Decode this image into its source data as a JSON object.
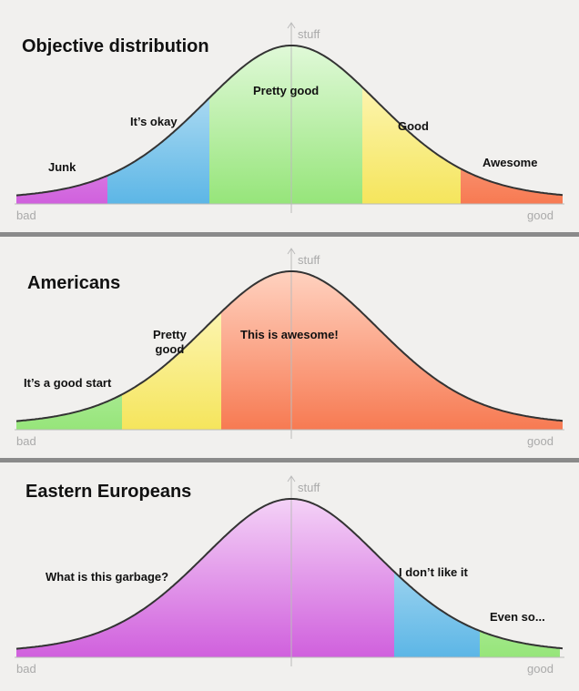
{
  "panels": [
    {
      "title": "Objective distribution",
      "y_axis_label": "stuff",
      "x_min_label": "bad",
      "x_max_label": "good",
      "segments": [
        {
          "label": "Junk"
        },
        {
          "label": "It’s okay"
        },
        {
          "label": "Pretty good"
        },
        {
          "label": "Good"
        },
        {
          "label": "Awesome"
        }
      ]
    },
    {
      "title": "Americans",
      "y_axis_label": "stuff",
      "x_min_label": "bad",
      "x_max_label": "good",
      "segments": [
        {
          "label": "It’s a good start"
        },
        {
          "label": "Pretty\ngood"
        },
        {
          "label": "This is awesome!"
        }
      ]
    },
    {
      "title": "Eastern Europeans",
      "y_axis_label": "stuff",
      "x_min_label": "bad",
      "x_max_label": "good",
      "segments": [
        {
          "label": "What is this garbage?"
        },
        {
          "label": "I don’t like it"
        },
        {
          "label": "Even so..."
        }
      ]
    }
  ]
}
